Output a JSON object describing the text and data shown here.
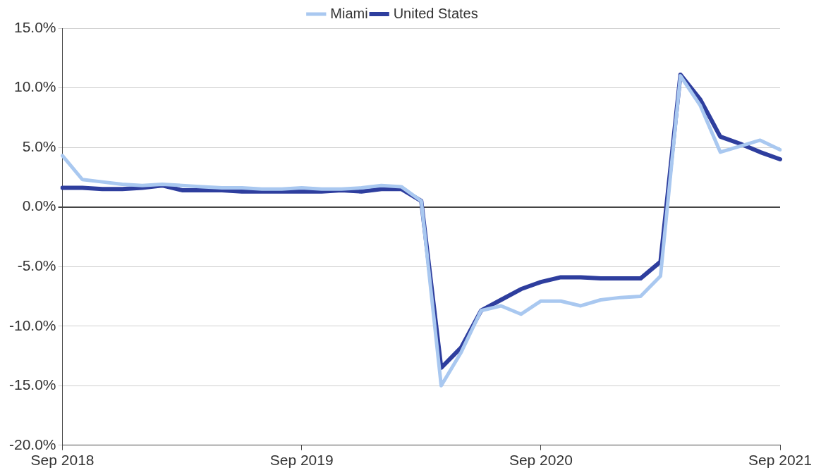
{
  "chart_data": {
    "type": "line",
    "categories": [
      "Sep 2018",
      null,
      null,
      null,
      null,
      null,
      null,
      null,
      null,
      null,
      null,
      null,
      "Sep 2019",
      null,
      null,
      null,
      null,
      null,
      null,
      null,
      null,
      null,
      null,
      null,
      "Sep 2020",
      null,
      null,
      null,
      null,
      null,
      null,
      null,
      null,
      null,
      null,
      null,
      "Sep 2021"
    ],
    "series": [
      {
        "name": "Miami",
        "color": "#a9c8f0",
        "values": [
          4.3,
          2.3,
          2.1,
          1.9,
          1.8,
          1.9,
          1.8,
          1.7,
          1.6,
          1.6,
          1.5,
          1.5,
          1.6,
          1.5,
          1.5,
          1.6,
          1.8,
          1.7,
          0.5,
          -15.0,
          -12.2,
          -8.7,
          -8.3,
          -9.0,
          -7.9,
          -7.9,
          -8.3,
          -7.8,
          -7.6,
          -7.5,
          -5.8,
          11.0,
          8.5,
          4.6,
          5.1,
          5.6,
          4.8
        ]
      },
      {
        "name": "United States",
        "color": "#2e3e9e",
        "values": [
          1.6,
          1.6,
          1.5,
          1.5,
          1.6,
          1.8,
          1.4,
          1.4,
          1.4,
          1.3,
          1.3,
          1.3,
          1.3,
          1.3,
          1.4,
          1.3,
          1.5,
          1.5,
          0.5,
          -13.5,
          -11.8,
          -8.7,
          -7.8,
          -6.9,
          -6.3,
          -5.9,
          -5.9,
          -6.0,
          -6.0,
          -6.0,
          -4.6,
          11.1,
          9.0,
          5.9,
          5.3,
          4.6,
          4.0
        ]
      }
    ],
    "ylim": [
      -20,
      15
    ],
    "yticks": [
      {
        "value": -20,
        "label": "-20.0%"
      },
      {
        "value": -15,
        "label": "-15.0%"
      },
      {
        "value": -10,
        "label": "-10.0%"
      },
      {
        "value": -5,
        "label": "-5.0%"
      },
      {
        "value": 0,
        "label": "0.0%"
      },
      {
        "value": 5,
        "label": "5.0%"
      },
      {
        "value": 10,
        "label": "10.0%"
      },
      {
        "value": 15,
        "label": "15.0%"
      }
    ],
    "grid": "y",
    "legend": "top",
    "marker": "none",
    "line_style": "solid"
  }
}
